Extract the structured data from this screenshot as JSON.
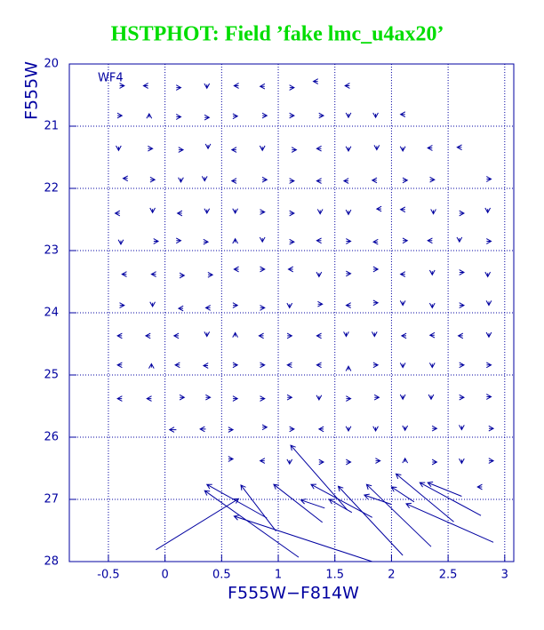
{
  "chart_data": {
    "type": "quiver",
    "title": "HSTPHOT: Field ’fake lmc_u4ax20’",
    "annotation": "WF4",
    "x_label": "F555W−F814W",
    "y_label": "F555W",
    "color": "#0000a0",
    "title_color": "#00dd00",
    "grid": true,
    "xlim": [
      -0.845,
      3.08
    ],
    "ylim": [
      28,
      20
    ],
    "xticks": [
      -0.5,
      0,
      0.5,
      1,
      1.5,
      2,
      2.5,
      3
    ],
    "yticks": [
      20,
      21,
      22,
      23,
      24,
      25,
      26,
      27,
      28
    ],
    "arrows": [
      [
        -0.4,
        20.35,
        -0.36,
        20.35
      ],
      [
        -0.15,
        20.35,
        -0.19,
        20.35
      ],
      [
        0.1,
        20.38,
        0.14,
        20.38
      ],
      [
        0.37,
        20.33,
        0.37,
        20.39
      ],
      [
        0.65,
        20.35,
        0.61,
        20.35
      ],
      [
        0.88,
        20.36,
        0.84,
        20.36
      ],
      [
        1.1,
        20.38,
        1.14,
        20.38
      ],
      [
        1.35,
        20.28,
        1.31,
        20.28
      ],
      [
        1.63,
        20.35,
        1.59,
        20.35
      ],
      [
        -0.42,
        20.83,
        -0.38,
        20.83
      ],
      [
        -0.14,
        20.86,
        -0.14,
        20.8
      ],
      [
        0.1,
        20.85,
        0.14,
        20.85
      ],
      [
        0.35,
        20.86,
        0.39,
        20.86
      ],
      [
        0.6,
        20.84,
        0.64,
        20.84
      ],
      [
        0.86,
        20.83,
        0.9,
        20.83
      ],
      [
        1.1,
        20.83,
        1.14,
        20.83
      ],
      [
        1.36,
        20.83,
        1.4,
        20.83
      ],
      [
        1.62,
        20.8,
        1.62,
        20.86
      ],
      [
        1.86,
        20.8,
        1.86,
        20.86
      ],
      [
        2.12,
        20.81,
        2.08,
        20.81
      ],
      [
        -0.41,
        21.33,
        -0.41,
        21.39
      ],
      [
        -0.15,
        21.36,
        -0.11,
        21.36
      ],
      [
        0.12,
        21.38,
        0.16,
        21.38
      ],
      [
        0.38,
        21.3,
        0.38,
        21.36
      ],
      [
        0.63,
        21.38,
        0.59,
        21.38
      ],
      [
        0.86,
        21.33,
        0.86,
        21.39
      ],
      [
        1.12,
        21.38,
        1.16,
        21.38
      ],
      [
        1.38,
        21.36,
        1.34,
        21.36
      ],
      [
        1.62,
        21.34,
        1.62,
        21.4
      ],
      [
        1.87,
        21.32,
        1.87,
        21.38
      ],
      [
        2.1,
        21.34,
        2.1,
        21.4
      ],
      [
        2.36,
        21.35,
        2.32,
        21.35
      ],
      [
        2.62,
        21.34,
        2.58,
        21.34
      ],
      [
        -0.33,
        21.84,
        -0.37,
        21.84
      ],
      [
        -0.13,
        21.86,
        -0.09,
        21.86
      ],
      [
        0.14,
        21.84,
        0.14,
        21.9
      ],
      [
        0.35,
        21.82,
        0.35,
        21.88
      ],
      [
        0.63,
        21.88,
        0.59,
        21.88
      ],
      [
        0.86,
        21.86,
        0.9,
        21.86
      ],
      [
        1.1,
        21.88,
        1.14,
        21.88
      ],
      [
        1.38,
        21.88,
        1.34,
        21.88
      ],
      [
        1.62,
        21.88,
        1.58,
        21.88
      ],
      [
        1.87,
        21.87,
        1.83,
        21.87
      ],
      [
        2.1,
        21.87,
        2.14,
        21.87
      ],
      [
        2.34,
        21.86,
        2.38,
        21.86
      ],
      [
        2.84,
        21.85,
        2.88,
        21.85
      ],
      [
        -0.4,
        22.4,
        -0.44,
        22.4
      ],
      [
        -0.11,
        22.33,
        -0.11,
        22.39
      ],
      [
        0.15,
        22.4,
        0.11,
        22.4
      ],
      [
        0.37,
        22.34,
        0.37,
        22.4
      ],
      [
        0.62,
        22.34,
        0.62,
        22.4
      ],
      [
        0.84,
        22.38,
        0.88,
        22.38
      ],
      [
        1.1,
        22.4,
        1.14,
        22.4
      ],
      [
        1.37,
        22.35,
        1.37,
        22.41
      ],
      [
        1.62,
        22.36,
        1.62,
        22.42
      ],
      [
        1.91,
        22.33,
        1.87,
        22.33
      ],
      [
        2.12,
        22.34,
        2.08,
        22.34
      ],
      [
        2.37,
        22.35,
        2.37,
        22.41
      ],
      [
        2.6,
        22.4,
        2.64,
        22.4
      ],
      [
        2.85,
        22.33,
        2.85,
        22.39
      ],
      [
        -0.39,
        22.84,
        -0.39,
        22.9
      ],
      [
        -0.1,
        22.85,
        -0.06,
        22.85
      ],
      [
        0.1,
        22.84,
        0.14,
        22.84
      ],
      [
        0.34,
        22.86,
        0.38,
        22.86
      ],
      [
        0.62,
        22.87,
        0.62,
        22.81
      ],
      [
        0.86,
        22.8,
        0.86,
        22.86
      ],
      [
        1.1,
        22.86,
        1.14,
        22.86
      ],
      [
        1.38,
        22.84,
        1.34,
        22.84
      ],
      [
        1.6,
        22.85,
        1.64,
        22.85
      ],
      [
        1.88,
        22.86,
        1.84,
        22.86
      ],
      [
        2.1,
        22.84,
        2.14,
        22.84
      ],
      [
        2.36,
        22.84,
        2.32,
        22.84
      ],
      [
        2.6,
        22.8,
        2.6,
        22.86
      ],
      [
        2.84,
        22.85,
        2.88,
        22.85
      ],
      [
        -0.34,
        23.38,
        -0.38,
        23.38
      ],
      [
        -0.08,
        23.38,
        -0.12,
        23.38
      ],
      [
        0.13,
        23.4,
        0.17,
        23.4
      ],
      [
        0.38,
        23.39,
        0.42,
        23.39
      ],
      [
        0.65,
        23.3,
        0.61,
        23.3
      ],
      [
        0.84,
        23.3,
        0.88,
        23.3
      ],
      [
        1.13,
        23.3,
        1.09,
        23.3
      ],
      [
        1.36,
        23.36,
        1.36,
        23.42
      ],
      [
        1.6,
        23.37,
        1.64,
        23.37
      ],
      [
        1.84,
        23.3,
        1.88,
        23.3
      ],
      [
        2.12,
        23.38,
        2.08,
        23.38
      ],
      [
        2.36,
        23.33,
        2.36,
        23.39
      ],
      [
        2.6,
        23.35,
        2.64,
        23.35
      ],
      [
        2.85,
        23.36,
        2.85,
        23.42
      ],
      [
        -0.4,
        23.88,
        -0.36,
        23.88
      ],
      [
        -0.11,
        23.84,
        -0.11,
        23.9
      ],
      [
        0.16,
        23.93,
        0.12,
        23.93
      ],
      [
        0.4,
        23.92,
        0.36,
        23.92
      ],
      [
        0.6,
        23.88,
        0.64,
        23.88
      ],
      [
        0.84,
        23.92,
        0.88,
        23.92
      ],
      [
        1.1,
        23.86,
        1.1,
        23.92
      ],
      [
        1.35,
        23.86,
        1.39,
        23.86
      ],
      [
        1.64,
        23.88,
        1.6,
        23.88
      ],
      [
        1.84,
        23.84,
        1.88,
        23.84
      ],
      [
        2.1,
        23.82,
        2.1,
        23.88
      ],
      [
        2.36,
        23.86,
        2.36,
        23.92
      ],
      [
        2.6,
        23.88,
        2.64,
        23.88
      ],
      [
        2.86,
        23.82,
        2.86,
        23.88
      ],
      [
        -0.38,
        24.37,
        -0.42,
        24.37
      ],
      [
        -0.13,
        24.37,
        -0.17,
        24.37
      ],
      [
        0.12,
        24.37,
        0.08,
        24.37
      ],
      [
        0.37,
        24.32,
        0.37,
        24.38
      ],
      [
        0.62,
        24.38,
        0.62,
        24.32
      ],
      [
        0.87,
        24.37,
        0.83,
        24.37
      ],
      [
        1.08,
        24.37,
        1.12,
        24.37
      ],
      [
        1.38,
        24.37,
        1.34,
        24.37
      ],
      [
        1.6,
        24.32,
        1.6,
        24.38
      ],
      [
        1.85,
        24.32,
        1.85,
        24.38
      ],
      [
        2.13,
        24.37,
        2.09,
        24.37
      ],
      [
        2.38,
        24.36,
        2.34,
        24.36
      ],
      [
        2.63,
        24.37,
        2.59,
        24.37
      ],
      [
        2.86,
        24.33,
        2.86,
        24.39
      ],
      [
        -0.38,
        24.84,
        -0.42,
        24.84
      ],
      [
        -0.12,
        24.88,
        -0.12,
        24.82
      ],
      [
        0.13,
        24.84,
        0.09,
        24.84
      ],
      [
        0.38,
        24.85,
        0.34,
        24.85
      ],
      [
        0.6,
        24.84,
        0.64,
        24.84
      ],
      [
        0.84,
        24.84,
        0.88,
        24.84
      ],
      [
        1.12,
        24.84,
        1.08,
        24.84
      ],
      [
        1.38,
        24.84,
        1.34,
        24.84
      ],
      [
        1.62,
        24.92,
        1.62,
        24.86
      ],
      [
        1.84,
        24.84,
        1.88,
        24.84
      ],
      [
        2.1,
        24.82,
        2.1,
        24.88
      ],
      [
        2.36,
        24.82,
        2.36,
        24.88
      ],
      [
        2.6,
        24.84,
        2.64,
        24.84
      ],
      [
        2.84,
        24.84,
        2.88,
        24.84
      ],
      [
        -0.38,
        25.38,
        -0.42,
        25.38
      ],
      [
        -0.12,
        25.38,
        -0.16,
        25.38
      ],
      [
        0.13,
        25.36,
        0.17,
        25.36
      ],
      [
        0.36,
        25.36,
        0.4,
        25.36
      ],
      [
        0.6,
        25.38,
        0.64,
        25.38
      ],
      [
        0.84,
        25.38,
        0.88,
        25.38
      ],
      [
        1.08,
        25.36,
        1.12,
        25.36
      ],
      [
        1.36,
        25.34,
        1.36,
        25.4
      ],
      [
        1.6,
        25.38,
        1.64,
        25.38
      ],
      [
        1.85,
        25.36,
        1.89,
        25.36
      ],
      [
        2.1,
        25.33,
        2.1,
        25.39
      ],
      [
        2.35,
        25.33,
        2.35,
        25.39
      ],
      [
        2.6,
        25.36,
        2.64,
        25.36
      ],
      [
        2.84,
        25.35,
        2.88,
        25.35
      ],
      [
        0.1,
        25.88,
        0.04,
        25.88
      ],
      [
        0.36,
        25.87,
        0.31,
        25.87
      ],
      [
        0.56,
        25.88,
        0.6,
        25.88
      ],
      [
        0.86,
        25.84,
        0.9,
        25.84
      ],
      [
        1.1,
        25.87,
        1.14,
        25.87
      ],
      [
        1.4,
        25.87,
        1.36,
        25.87
      ],
      [
        1.62,
        25.84,
        1.62,
        25.9
      ],
      [
        1.86,
        25.84,
        1.86,
        25.9
      ],
      [
        2.12,
        25.83,
        2.12,
        25.89
      ],
      [
        2.36,
        25.86,
        2.4,
        25.86
      ],
      [
        2.62,
        25.82,
        2.62,
        25.88
      ],
      [
        2.86,
        25.86,
        2.9,
        25.86
      ],
      [
        0.56,
        26.35,
        0.6,
        26.35
      ],
      [
        0.88,
        26.38,
        0.84,
        26.38
      ],
      [
        1.1,
        26.37,
        1.1,
        26.43
      ],
      [
        1.36,
        26.4,
        1.4,
        26.4
      ],
      [
        1.6,
        26.4,
        1.64,
        26.4
      ],
      [
        1.86,
        26.38,
        1.9,
        26.38
      ],
      [
        2.12,
        26.4,
        2.12,
        26.34
      ],
      [
        2.36,
        26.4,
        2.4,
        26.4
      ],
      [
        2.62,
        26.36,
        2.62,
        26.42
      ],
      [
        2.86,
        26.38,
        2.9,
        26.38
      ],
      [
        2.8,
        26.8,
        2.76,
        26.8
      ],
      [
        -0.08,
        27.81,
        0.65,
        26.99
      ],
      [
        1.18,
        27.93,
        0.35,
        26.86
      ],
      [
        1.83,
        28.0,
        0.61,
        27.27
      ],
      [
        0.98,
        27.51,
        0.67,
        26.77
      ],
      [
        1.39,
        27.37,
        0.96,
        26.76
      ],
      [
        1.61,
        27.17,
        1.11,
        26.13
      ],
      [
        1.83,
        27.29,
        1.29,
        26.76
      ],
      [
        2.1,
        27.9,
        1.53,
        26.79
      ],
      [
        2.35,
        27.76,
        1.78,
        26.76
      ],
      [
        2.55,
        27.36,
        2.04,
        26.59
      ],
      [
        2.9,
        27.69,
        2.13,
        27.07
      ],
      [
        2.79,
        27.26,
        2.25,
        26.73
      ],
      [
        1.41,
        27.14,
        1.2,
        27.01
      ],
      [
        1.65,
        27.21,
        1.45,
        27.0
      ],
      [
        2.0,
        27.08,
        1.76,
        26.93
      ],
      [
        2.2,
        27.04,
        2.0,
        26.8
      ],
      [
        0.9,
        27.3,
        0.37,
        26.76
      ],
      [
        2.62,
        26.95,
        2.32,
        26.73
      ]
    ]
  }
}
